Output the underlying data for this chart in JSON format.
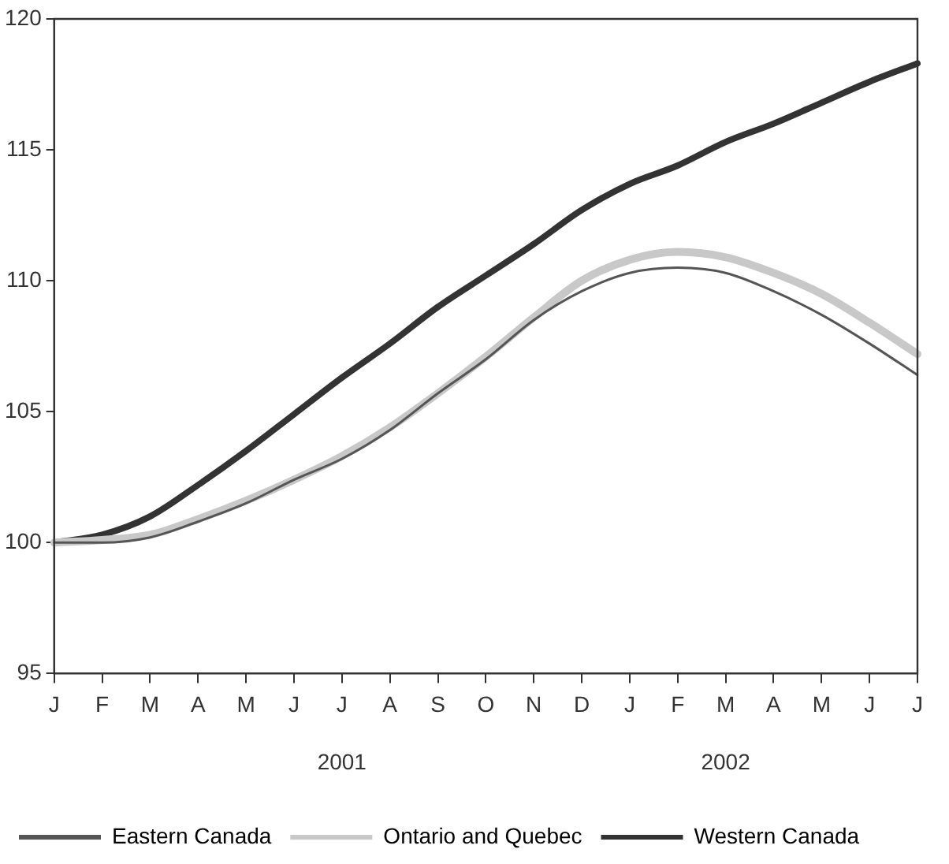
{
  "chart_data": {
    "type": "line",
    "categories": [
      "J",
      "F",
      "M",
      "A",
      "M",
      "J",
      "J",
      "A",
      "S",
      "O",
      "N",
      "D",
      "J",
      "F",
      "M",
      "A",
      "M",
      "J",
      "J"
    ],
    "series": [
      {
        "name": "Eastern Canada",
        "color": "#555555",
        "values": [
          100,
          100,
          100.2,
          100.8,
          101.5,
          102.4,
          103.2,
          104.3,
          105.7,
          107,
          108.5,
          109.6,
          110.3,
          110.5,
          110.3,
          109.6,
          108.7,
          107.6,
          106.4
        ]
      },
      {
        "name": "Ontario and Quebec",
        "color": "#c8c8c8",
        "values": [
          100,
          100.1,
          100.3,
          100.9,
          101.6,
          102.4,
          103.3,
          104.4,
          105.7,
          107.1,
          108.6,
          110,
          110.8,
          111.1,
          110.9,
          110.3,
          109.5,
          108.4,
          107.2
        ]
      },
      {
        "name": "Western Canada",
        "color": "#333333",
        "values": [
          100,
          100.3,
          101,
          102.2,
          103.5,
          104.9,
          106.3,
          107.6,
          109,
          110.2,
          111.4,
          112.7,
          113.7,
          114.4,
          115.3,
          116,
          116.8,
          117.6,
          118.3
        ]
      }
    ],
    "ylim": [
      95,
      120
    ],
    "yticks": [
      95,
      100,
      105,
      110,
      115,
      120
    ],
    "annotations": [
      "2001",
      "2002"
    ],
    "grid": false,
    "legend": "bottom",
    "marker": "none",
    "line_style": "solid"
  }
}
